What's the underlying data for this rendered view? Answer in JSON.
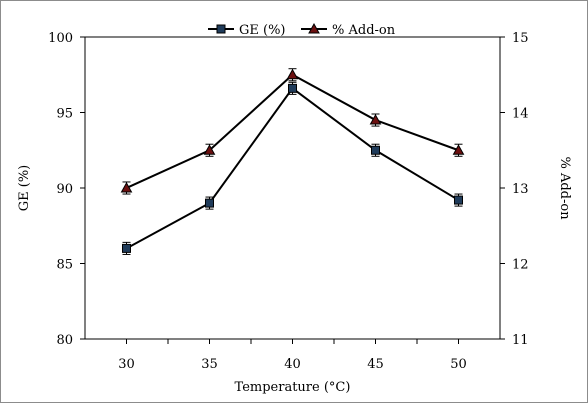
{
  "chart_data": {
    "type": "line",
    "x": [
      30,
      35,
      40,
      45,
      50
    ],
    "xlabel": "Temperature (°C)",
    "ylabel": "GE (%)",
    "ylabel_right": "% Add-on",
    "xlim": [
      27.5,
      52.5
    ],
    "ylim": [
      80,
      100
    ],
    "ylim_right": [
      11,
      15
    ],
    "yticks": [
      80,
      85,
      90,
      95,
      100
    ],
    "yticks_right": [
      11,
      12,
      13,
      14,
      15
    ],
    "grid": false,
    "legend_position": "top-center",
    "series": [
      {
        "name": "GE (%)",
        "axis": "left",
        "marker": "square",
        "color": "#000000",
        "marker_fill": "#1f3b5a",
        "values": [
          86.0,
          89.0,
          96.6,
          92.5,
          89.2
        ],
        "errors": [
          0.4,
          0.4,
          0.4,
          0.4,
          0.4
        ]
      },
      {
        "name": "% Add-on",
        "axis": "right",
        "marker": "triangle",
        "color": "#000000",
        "marker_fill": "#6b1010",
        "values": [
          13.0,
          13.5,
          14.5,
          13.9,
          13.5
        ],
        "errors": [
          0.08,
          0.08,
          0.08,
          0.08,
          0.08
        ]
      }
    ]
  }
}
